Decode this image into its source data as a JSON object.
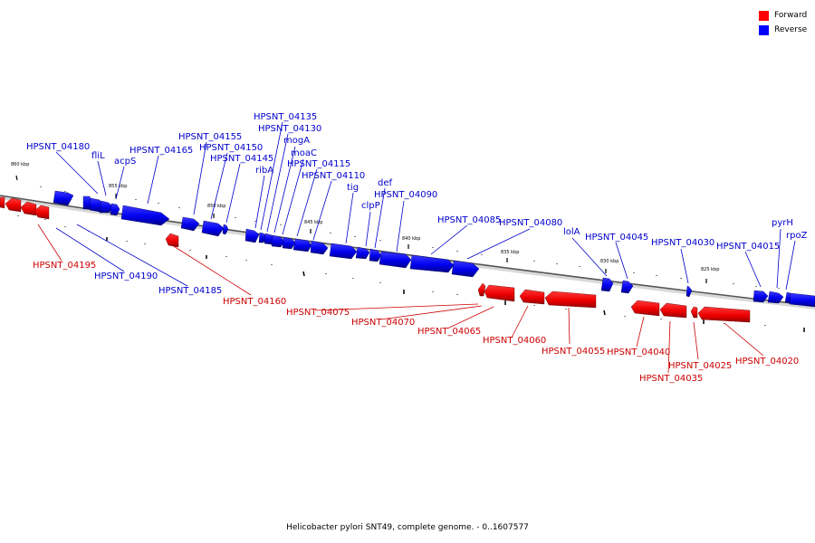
{
  "legend": {
    "forward_label": "Forward",
    "reverse_label": "Reverse",
    "forward_color": "#ff0000",
    "reverse_color": "#0000ff"
  },
  "caption": "Helicobacter pylori SNT49, complete genome. - 0..1607577",
  "scale": {
    "unit_labels": [
      "860 kbp",
      "855 kbp",
      "850 kbp",
      "845 kbp",
      "840 kbp",
      "835 kbp",
      "830 kbp",
      "825 kbp"
    ]
  },
  "reverse_genes": [
    "HPSNT_04180",
    "fliL",
    "acpS",
    "HPSNT_04165",
    "HPSNT_04155",
    "HPSNT_04150",
    "HPSNT_04145",
    "ribA",
    "HPSNT_04135",
    "HPSNT_04130",
    "mogA",
    "moaC",
    "HPSNT_04115",
    "HPSNT_04110",
    "tig",
    "clpP",
    "def",
    "HPSNT_04090",
    "HPSNT_04085",
    "HPSNT_04080",
    "lolA",
    "HPSNT_04045",
    "HPSNT_04030",
    "HPSNT_04015",
    "pyrH",
    "rpoZ",
    "HPSNT_04190",
    "HPSNT_04185"
  ],
  "forward_genes": [
    "HPSNT_04195",
    "HPSNT_04160",
    "HPSNT_04075",
    "HPSNT_04070",
    "HPSNT_04065",
    "HPSNT_04060",
    "HPSNT_04055",
    "HPSNT_04040",
    "HPSNT_04035",
    "HPSNT_04025",
    "HPSNT_04020"
  ]
}
